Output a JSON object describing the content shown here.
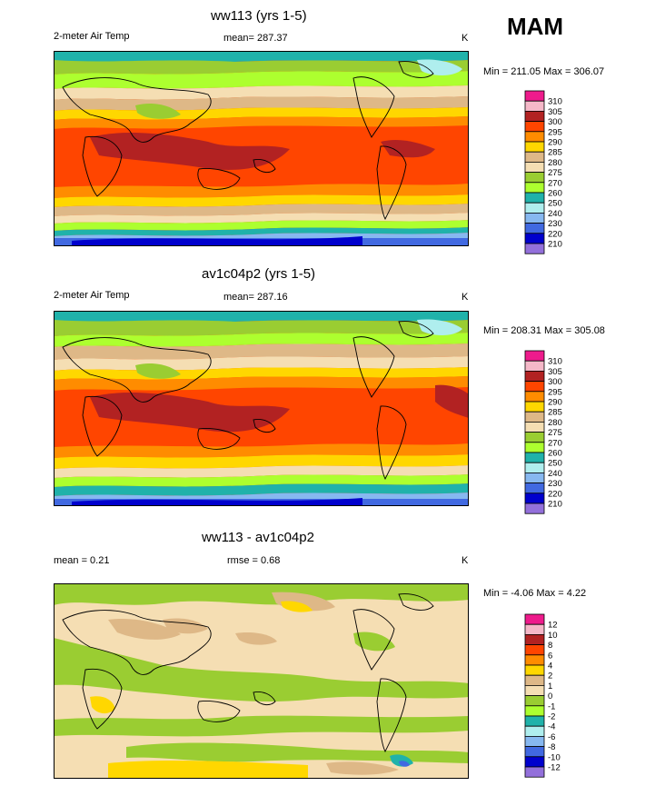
{
  "season": "MAM",
  "chart_data": [
    {
      "type": "heatmap",
      "title": "ww113 (yrs 1-5)",
      "variable": "2-meter Air Temp",
      "mean_label": "mean= 287.37",
      "units": "K",
      "min_max": "Min = 211.05 Max = 306.07",
      "levels": [
        "310",
        "305",
        "300",
        "295",
        "290",
        "285",
        "280",
        "275",
        "270",
        "260",
        "250",
        "240",
        "230",
        "220",
        "210"
      ],
      "colors": [
        "#ee1b8c",
        "#f5b8c8",
        "#b22222",
        "#ff4500",
        "#ff8c00",
        "#ffd700",
        "#deb887",
        "#f5deb3",
        "#9acd32",
        "#adff2f",
        "#20b2aa",
        "#afeeee",
        "#87b8f0",
        "#4169e1",
        "#0000cd",
        "#9370db"
      ],
      "mean_value": 287.37,
      "min": 211.05,
      "max": 306.07
    },
    {
      "type": "heatmap",
      "title": "av1c04p2 (yrs 1-5)",
      "variable": "2-meter Air Temp",
      "mean_label": "mean= 287.16",
      "units": "K",
      "min_max": "Min = 208.31 Max = 305.08",
      "levels": [
        "310",
        "305",
        "300",
        "295",
        "290",
        "285",
        "280",
        "275",
        "270",
        "260",
        "250",
        "240",
        "230",
        "220",
        "210"
      ],
      "colors": [
        "#ee1b8c",
        "#f5b8c8",
        "#b22222",
        "#ff4500",
        "#ff8c00",
        "#ffd700",
        "#deb887",
        "#f5deb3",
        "#9acd32",
        "#adff2f",
        "#20b2aa",
        "#afeeee",
        "#87b8f0",
        "#4169e1",
        "#0000cd",
        "#9370db"
      ],
      "mean_value": 287.16,
      "min": 208.31,
      "max": 305.08
    },
    {
      "type": "heatmap",
      "title": "ww113 - av1c04p2",
      "mean_label": "mean =   0.21",
      "rmse_label": "rmse =   0.68",
      "units": "K",
      "min_max": "Min =  -4.06 Max =   4.22",
      "levels": [
        "12",
        "10",
        "8",
        "6",
        "4",
        "2",
        "1",
        "0",
        "-1",
        "-2",
        "-4",
        "-6",
        "-8",
        "-10",
        "-12"
      ],
      "colors": [
        "#ee1b8c",
        "#f5b8c8",
        "#b22222",
        "#ff4500",
        "#ff8c00",
        "#ffd700",
        "#deb887",
        "#f5deb3",
        "#9acd32",
        "#adff2f",
        "#20b2aa",
        "#afeeee",
        "#87b8f0",
        "#4169e1",
        "#0000cd",
        "#9370db"
      ],
      "mean_value": 0.21,
      "rmse_value": 0.68,
      "min": -4.06,
      "max": 4.22
    }
  ]
}
